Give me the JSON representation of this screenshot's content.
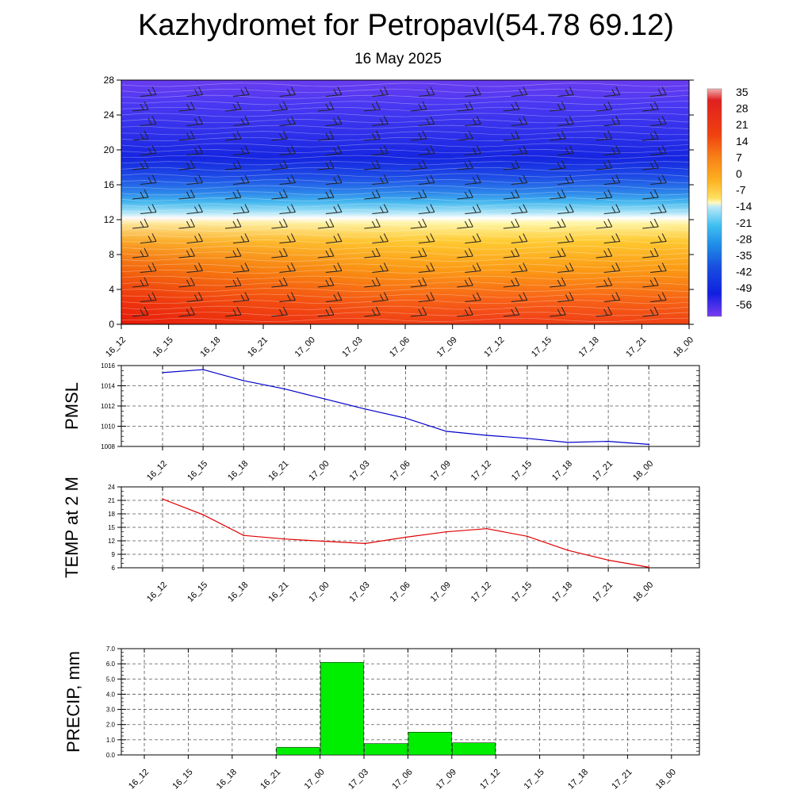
{
  "header": {
    "title": "Kazhydromet for Petropavl(54.78 69.12)",
    "date": "16 May 2025"
  },
  "colors": {
    "pmsl_line": "#0000cc",
    "temp_line": "#e00000",
    "precip_bar": "#00ee00",
    "grid": "#555555"
  },
  "chart_data": [
    {
      "type": "heatmap",
      "name": "temperature-cross-section",
      "x": [
        "16_12",
        "16_15",
        "16_18",
        "16_21",
        "17_00",
        "17_03",
        "17_06",
        "17_09",
        "17_12",
        "17_15",
        "17_18",
        "17_21",
        "18_00"
      ],
      "ylim": [
        0,
        28
      ],
      "yticks": [
        0,
        4,
        8,
        12,
        16,
        20,
        24,
        28
      ],
      "colorbar_labels": [
        "35",
        "28",
        "21",
        "14",
        "7",
        "0",
        "-7",
        "-14",
        "-21",
        "-28",
        "-35",
        "-42",
        "-49",
        "-56"
      ],
      "colorbar_range": [
        -63,
        42
      ],
      "wind_barbs": true
    },
    {
      "type": "line",
      "name": "pmsl",
      "ylabel": "PMSL",
      "x": [
        "16_12",
        "16_15",
        "16_18",
        "16_21",
        "17_00",
        "17_03",
        "17_06",
        "17_09",
        "17_12",
        "17_15",
        "17_18",
        "17_21",
        "18_00"
      ],
      "values": [
        1015.3,
        1015.6,
        1014.5,
        1013.7,
        1012.7,
        1011.7,
        1010.8,
        1009.5,
        1009.1,
        1008.8,
        1008.4,
        1008.5,
        1008.2
      ],
      "ylim": [
        1008,
        1016
      ],
      "yticks": [
        1008,
        1010,
        1012,
        1014,
        1016
      ],
      "grid": true
    },
    {
      "type": "line",
      "name": "temp-2m",
      "ylabel": "TEMP at 2 M",
      "x": [
        "16_12",
        "16_15",
        "16_18",
        "16_21",
        "17_00",
        "17_03",
        "17_06",
        "17_09",
        "17_12",
        "17_15",
        "17_18",
        "17_21",
        "18_00"
      ],
      "values": [
        21.3,
        17.8,
        13.2,
        12.4,
        11.9,
        11.4,
        12.8,
        14.0,
        14.7,
        13.0,
        9.9,
        7.7,
        6.1
      ],
      "ylim": [
        6,
        24
      ],
      "yticks": [
        6,
        9,
        12,
        15,
        18,
        21,
        24
      ],
      "grid": true
    },
    {
      "type": "bar",
      "name": "precip",
      "ylabel": "PRECIP, mm",
      "categories": [
        "16_12",
        "16_15",
        "16_18",
        "16_21",
        "17_00",
        "17_03",
        "17_06",
        "17_09",
        "17_12",
        "17_15",
        "17_18",
        "17_21",
        "18_00"
      ],
      "values": [
        0,
        0,
        0,
        0,
        0.5,
        6.1,
        0.75,
        1.5,
        0.8,
        0,
        0,
        0,
        0
      ],
      "ylim": [
        0,
        7
      ],
      "yticks": [
        "0.0",
        "1.0",
        "2.0",
        "3.0",
        "4.0",
        "5.0",
        "6.0",
        "7.0"
      ],
      "grid": true
    }
  ]
}
